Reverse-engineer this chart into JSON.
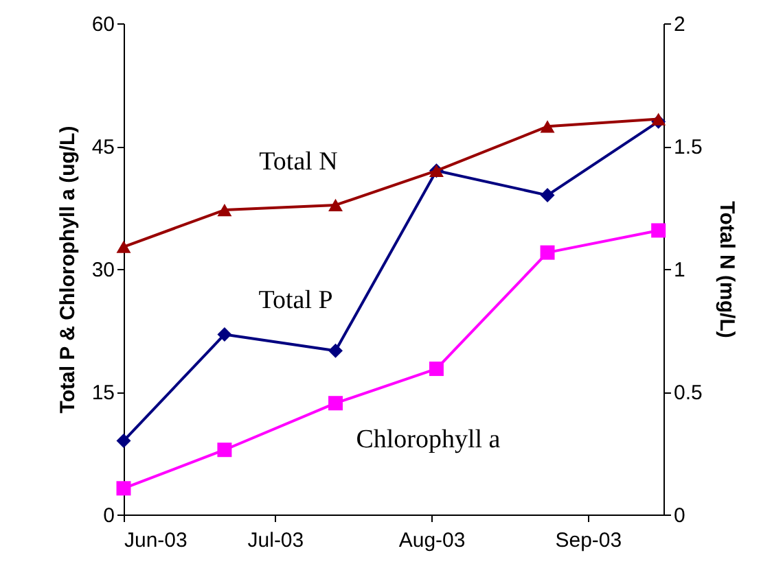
{
  "chart_data": {
    "type": "line",
    "ylabel": "Total P & Chlorophyll a (ug/L)",
    "y2label": "Total N (mg/L)",
    "x": [
      "2003-06-01",
      "2003-06-21",
      "2003-07-13",
      "2003-08-02",
      "2003-08-24",
      "2003-09-15"
    ],
    "xlim": [
      "2003-06-01",
      "2003-09-16"
    ],
    "xticks": [
      {
        "value": "2003-06-01",
        "label": "Jun-03"
      },
      {
        "value": "2003-07-01",
        "label": "Jul-03"
      },
      {
        "value": "2003-08-01",
        "label": "Aug-03"
      },
      {
        "value": "2003-09-01",
        "label": "Sep-03"
      }
    ],
    "ylim": [
      0,
      60
    ],
    "yticks": [
      0,
      15,
      30,
      45,
      60
    ],
    "y2lim": [
      0,
      2
    ],
    "y2ticks": [
      0,
      0.5,
      1,
      1.5,
      2
    ],
    "grid": false,
    "line_style": "solid",
    "series": [
      {
        "name": "Total N",
        "color": "#990000",
        "marker": "triangle",
        "axis": "y2",
        "values": [
          1.09,
          1.24,
          1.26,
          1.4,
          1.58,
          1.61
        ]
      },
      {
        "name": "Total P",
        "color": "#000080",
        "marker": "diamond",
        "values": [
          9,
          22,
          20,
          42,
          39,
          48
        ]
      },
      {
        "name": "Chlorophyll a",
        "color": "#ff00ff",
        "marker": "square",
        "values": [
          3.2,
          7.9,
          13.6,
          17.8,
          32,
          34.7
        ]
      }
    ]
  }
}
